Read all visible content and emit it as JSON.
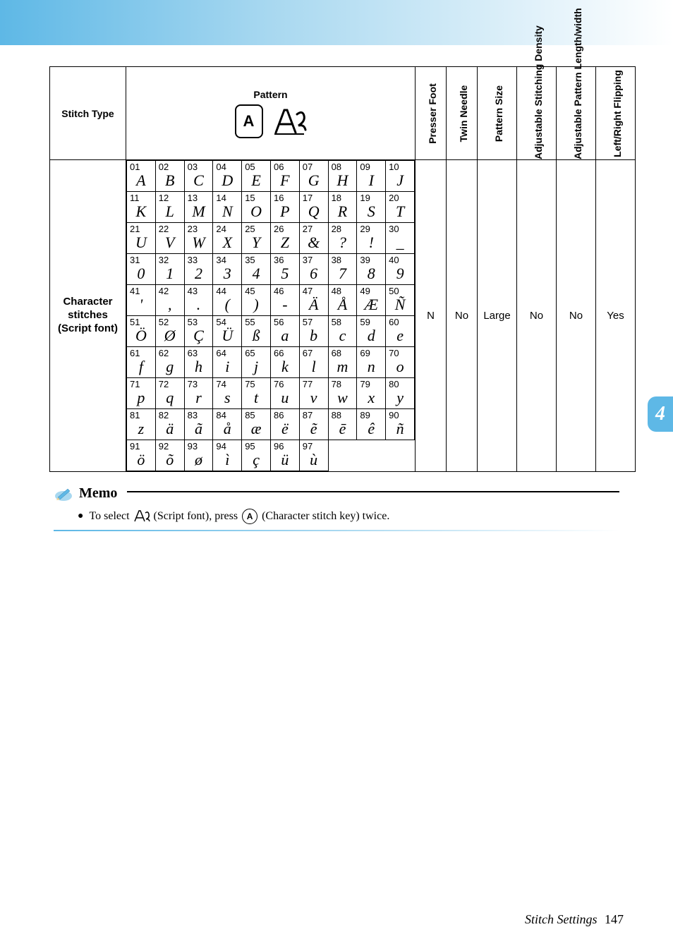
{
  "headers": {
    "stitch_type": "Stitch Type",
    "pattern": "Pattern",
    "presser_foot": "Presser Foot",
    "twin_needle": "Twin Needle",
    "pattern_size": "Pattern Size",
    "adj_density": "Adjustable Stitching Density",
    "adj_length": "Adjustable Pattern Length/width",
    "flipping": "Left/Right Flipping",
    "key_label": "A"
  },
  "row": {
    "stitch_type": "Character stitches (Script font)",
    "presser_foot": "N",
    "twin_needle": "No",
    "pattern_size": "Large",
    "adj_density": "No",
    "adj_length": "No",
    "flipping": "Yes"
  },
  "grid": [
    [
      {
        "n": "01",
        "g": "A"
      },
      {
        "n": "02",
        "g": "B"
      },
      {
        "n": "03",
        "g": "C"
      },
      {
        "n": "04",
        "g": "D"
      },
      {
        "n": "05",
        "g": "E"
      },
      {
        "n": "06",
        "g": "F"
      },
      {
        "n": "07",
        "g": "G"
      },
      {
        "n": "08",
        "g": "H"
      },
      {
        "n": "09",
        "g": "I"
      },
      {
        "n": "10",
        "g": "J"
      }
    ],
    [
      {
        "n": "11",
        "g": "K"
      },
      {
        "n": "12",
        "g": "L"
      },
      {
        "n": "13",
        "g": "M"
      },
      {
        "n": "14",
        "g": "N"
      },
      {
        "n": "15",
        "g": "O"
      },
      {
        "n": "16",
        "g": "P"
      },
      {
        "n": "17",
        "g": "Q"
      },
      {
        "n": "18",
        "g": "R"
      },
      {
        "n": "19",
        "g": "S"
      },
      {
        "n": "20",
        "g": "T"
      }
    ],
    [
      {
        "n": "21",
        "g": "U"
      },
      {
        "n": "22",
        "g": "V"
      },
      {
        "n": "23",
        "g": "W"
      },
      {
        "n": "24",
        "g": "X"
      },
      {
        "n": "25",
        "g": "Y"
      },
      {
        "n": "26",
        "g": "Z"
      },
      {
        "n": "27",
        "g": "&"
      },
      {
        "n": "28",
        "g": "?"
      },
      {
        "n": "29",
        "g": "!"
      },
      {
        "n": "30",
        "g": "_"
      }
    ],
    [
      {
        "n": "31",
        "g": "0"
      },
      {
        "n": "32",
        "g": "1"
      },
      {
        "n": "33",
        "g": "2"
      },
      {
        "n": "34",
        "g": "3"
      },
      {
        "n": "35",
        "g": "4"
      },
      {
        "n": "36",
        "g": "5"
      },
      {
        "n": "37",
        "g": "6"
      },
      {
        "n": "38",
        "g": "7"
      },
      {
        "n": "39",
        "g": "8"
      },
      {
        "n": "40",
        "g": "9"
      }
    ],
    [
      {
        "n": "41",
        "g": "'"
      },
      {
        "n": "42",
        "g": ","
      },
      {
        "n": "43",
        "g": "."
      },
      {
        "n": "44",
        "g": "("
      },
      {
        "n": "45",
        "g": ")"
      },
      {
        "n": "46",
        "g": "-"
      },
      {
        "n": "47",
        "g": "Ä"
      },
      {
        "n": "48",
        "g": "Å"
      },
      {
        "n": "49",
        "g": "Æ"
      },
      {
        "n": "50",
        "g": "Ñ"
      }
    ],
    [
      {
        "n": "51",
        "g": "Ö"
      },
      {
        "n": "52",
        "g": "Ø"
      },
      {
        "n": "53",
        "g": "Ç"
      },
      {
        "n": "54",
        "g": "Ü"
      },
      {
        "n": "55",
        "g": "ß"
      },
      {
        "n": "56",
        "g": "a"
      },
      {
        "n": "57",
        "g": "b"
      },
      {
        "n": "58",
        "g": "c"
      },
      {
        "n": "59",
        "g": "d"
      },
      {
        "n": "60",
        "g": "e"
      }
    ],
    [
      {
        "n": "61",
        "g": "f"
      },
      {
        "n": "62",
        "g": "g"
      },
      {
        "n": "63",
        "g": "h"
      },
      {
        "n": "64",
        "g": "i"
      },
      {
        "n": "65",
        "g": "j"
      },
      {
        "n": "66",
        "g": "k"
      },
      {
        "n": "67",
        "g": "l"
      },
      {
        "n": "68",
        "g": "m"
      },
      {
        "n": "69",
        "g": "n"
      },
      {
        "n": "70",
        "g": "o"
      }
    ],
    [
      {
        "n": "71",
        "g": "p"
      },
      {
        "n": "72",
        "g": "q"
      },
      {
        "n": "73",
        "g": "r"
      },
      {
        "n": "74",
        "g": "s"
      },
      {
        "n": "75",
        "g": "t"
      },
      {
        "n": "76",
        "g": "u"
      },
      {
        "n": "77",
        "g": "v"
      },
      {
        "n": "78",
        "g": "w"
      },
      {
        "n": "79",
        "g": "x"
      },
      {
        "n": "80",
        "g": "y"
      }
    ],
    [
      {
        "n": "81",
        "g": "z"
      },
      {
        "n": "82",
        "g": "ä"
      },
      {
        "n": "83",
        "g": "ã"
      },
      {
        "n": "84",
        "g": "å"
      },
      {
        "n": "85",
        "g": "æ"
      },
      {
        "n": "86",
        "g": "ë"
      },
      {
        "n": "87",
        "g": "ẽ"
      },
      {
        "n": "88",
        "g": "ē"
      },
      {
        "n": "89",
        "g": "ê"
      },
      {
        "n": "90",
        "g": "ñ"
      }
    ],
    [
      {
        "n": "91",
        "g": "ö"
      },
      {
        "n": "92",
        "g": "õ"
      },
      {
        "n": "93",
        "g": "ø"
      },
      {
        "n": "94",
        "g": "ì"
      },
      {
        "n": "95",
        "g": "ç"
      },
      {
        "n": "96",
        "g": "ü"
      },
      {
        "n": "97",
        "g": "ù"
      },
      null,
      null,
      null
    ]
  ],
  "memo": {
    "title": "Memo",
    "bullet": "●",
    "text_pre": "To select",
    "text_mid1": "(Script font), press",
    "key": "A",
    "text_post": "(Character stitch key) twice."
  },
  "tab": "4",
  "footer": {
    "section": "Stitch Settings",
    "page": "147"
  },
  "colors": {
    "accent": "#5eb8e6"
  }
}
